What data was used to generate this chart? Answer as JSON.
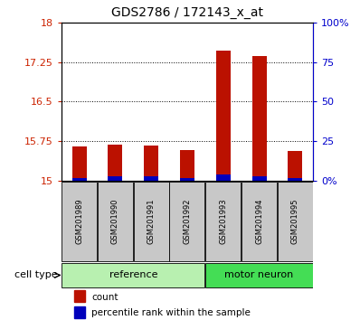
{
  "title": "GDS2786 / 172143_x_at",
  "samples": [
    "GSM201989",
    "GSM201990",
    "GSM201991",
    "GSM201992",
    "GSM201993",
    "GSM201994",
    "GSM201995"
  ],
  "count_values": [
    15.65,
    15.68,
    15.67,
    15.58,
    17.47,
    17.37,
    15.57
  ],
  "percentile_values": [
    2.0,
    3.0,
    3.0,
    2.0,
    4.0,
    3.0,
    2.0
  ],
  "ylim_left": [
    15,
    18
  ],
  "yticks_left": [
    15,
    15.75,
    16.5,
    17.25,
    18
  ],
  "ytick_labels_left": [
    "15",
    "15.75",
    "16.5",
    "17.25",
    "18"
  ],
  "ylim_right": [
    0,
    100
  ],
  "yticks_right": [
    0,
    25,
    50,
    75,
    100
  ],
  "ytick_labels_right": [
    "0%",
    "25",
    "50",
    "75",
    "100%"
  ],
  "groups": [
    {
      "label": "reference",
      "indices": [
        0,
        1,
        2,
        3
      ],
      "color": "#b8f0b0"
    },
    {
      "label": "motor neuron",
      "indices": [
        4,
        5,
        6
      ],
      "color": "#44dd55"
    }
  ],
  "bar_width": 0.4,
  "count_color": "#bb1100",
  "percentile_color": "#0000bb",
  "legend_items": [
    {
      "label": "count",
      "color": "#bb1100"
    },
    {
      "label": "percentile rank within the sample",
      "color": "#0000bb"
    }
  ],
  "cell_type_label": "cell type",
  "bg_color": "#ffffff",
  "sample_box_color": "#c8c8c8",
  "grid_color": "#000000",
  "left_axis_color": "#cc2200",
  "right_axis_color": "#0000cc"
}
